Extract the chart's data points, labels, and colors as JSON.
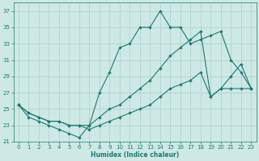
{
  "xlabel": "Humidex (Indice chaleur)",
  "background_color": "#cde8e5",
  "grid_color": "#aad0cc",
  "line_color": "#1e7a6d",
  "xlim": [
    -0.5,
    23.5
  ],
  "ylim": [
    21,
    38
  ],
  "xticks": [
    0,
    1,
    2,
    3,
    4,
    5,
    6,
    7,
    8,
    9,
    10,
    11,
    12,
    13,
    14,
    15,
    16,
    17,
    18,
    19,
    20,
    21,
    22,
    23
  ],
  "yticks": [
    21,
    23,
    25,
    27,
    29,
    31,
    33,
    35,
    37
  ],
  "line1_x": [
    0,
    1,
    2,
    3,
    4,
    5,
    6,
    7,
    8,
    9,
    10,
    11,
    12,
    13,
    14,
    15,
    16,
    17,
    18,
    19,
    20,
    21,
    22,
    23
  ],
  "line1_y": [
    25.5,
    24.0,
    23.5,
    23.0,
    22.5,
    22.0,
    21.5,
    23.0,
    27.0,
    29.5,
    32.5,
    33.0,
    35.0,
    35.0,
    37.0,
    35.0,
    35.0,
    33.0,
    33.5,
    34.0,
    34.5,
    31.0,
    29.5,
    27.5
  ],
  "line2_x": [
    0,
    1,
    2,
    3,
    4,
    5,
    6,
    7,
    8,
    9,
    10,
    11,
    12,
    13,
    14,
    15,
    16,
    17,
    18,
    19,
    20,
    21,
    22,
    23
  ],
  "line2_y": [
    25.5,
    24.5,
    24.0,
    23.5,
    23.5,
    23.0,
    23.0,
    23.0,
    24.0,
    25.0,
    25.5,
    26.5,
    27.5,
    28.5,
    30.0,
    31.5,
    32.5,
    33.5,
    34.5,
    26.5,
    27.5,
    29.0,
    30.5,
    27.5
  ],
  "line3_x": [
    0,
    1,
    2,
    3,
    4,
    5,
    6,
    7,
    8,
    9,
    10,
    11,
    12,
    13,
    14,
    15,
    16,
    17,
    18,
    19,
    20,
    21,
    22,
    23
  ],
  "line3_y": [
    25.5,
    24.5,
    24.0,
    23.5,
    23.5,
    23.0,
    23.0,
    22.5,
    23.0,
    23.5,
    24.0,
    24.5,
    25.0,
    25.5,
    26.5,
    27.5,
    28.0,
    28.5,
    29.5,
    26.5,
    27.5,
    27.5,
    27.5,
    27.5
  ]
}
